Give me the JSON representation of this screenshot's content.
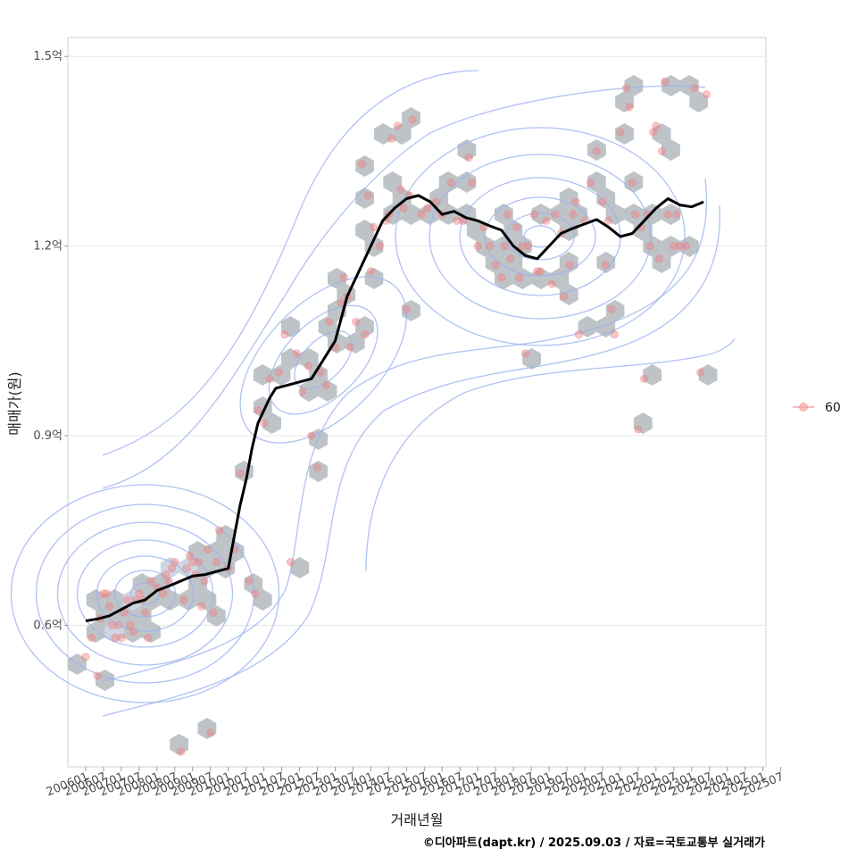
{
  "chart_data": {
    "type": "scatter",
    "xlabel": "거래년월",
    "ylabel": "매매가(원)",
    "caption": "©디아파트(dapt.kr) / 2025.09.03 / 자료=국토교통부 실거래가",
    "x_ticks": [
      "200601",
      "200607",
      "200701",
      "200707",
      "200801",
      "200807",
      "200901",
      "200907",
      "201001",
      "201007",
      "201101",
      "201107",
      "201201",
      "201207",
      "201301",
      "201307",
      "201401",
      "201407",
      "201501",
      "201507",
      "201601",
      "201607",
      "201701",
      "201707",
      "201801",
      "201807",
      "201901",
      "201907",
      "202001",
      "202007",
      "202101",
      "202107",
      "202201",
      "202207",
      "202301",
      "202307",
      "202401",
      "202407",
      "202501",
      "202507"
    ],
    "y_ticks": [
      {
        "label": "0.6억",
        "value": 0.6
      },
      {
        "label": "0.9억",
        "value": 0.9
      },
      {
        "label": "1.2억",
        "value": 1.2
      },
      {
        "label": "1.5억",
        "value": 1.5
      }
    ],
    "x_range": [
      -6,
      229
    ],
    "y_range": [
      0.376,
      1.53
    ],
    "grid": "horizontal",
    "legend": {
      "position": "right",
      "entries": [
        {
          "label": "60",
          "color": "#f4a6a6"
        }
      ]
    },
    "colors": {
      "points": "#f08080",
      "hexbin": "#b4bac0",
      "contour": "#9bb3ef",
      "trend": "#000000",
      "grid": "#e6e6e6"
    },
    "series": [
      {
        "name": "60",
        "kind": "points",
        "points": [
          [
            0,
            0.55
          ],
          [
            2,
            0.58
          ],
          [
            4,
            0.52
          ],
          [
            5,
            0.61
          ],
          [
            6,
            0.65
          ],
          [
            7,
            0.65
          ],
          [
            8,
            0.63
          ],
          [
            9,
            0.6
          ],
          [
            10,
            0.58
          ],
          [
            11,
            0.6
          ],
          [
            12,
            0.58
          ],
          [
            13,
            0.62
          ],
          [
            14,
            0.64
          ],
          [
            15,
            0.6
          ],
          [
            16,
            0.59
          ],
          [
            17,
            0.64
          ],
          [
            18,
            0.65
          ],
          [
            19,
            0.64
          ],
          [
            20,
            0.62
          ],
          [
            21,
            0.58
          ],
          [
            22,
            0.67
          ],
          [
            24,
            0.66
          ],
          [
            26,
            0.65
          ],
          [
            27,
            0.68
          ],
          [
            28,
            0.67
          ],
          [
            29,
            0.69
          ],
          [
            30,
            0.7
          ],
          [
            32,
            0.4
          ],
          [
            33,
            0.64
          ],
          [
            34,
            0.69
          ],
          [
            35,
            0.71
          ],
          [
            36,
            0.7
          ],
          [
            37,
            0.68
          ],
          [
            38,
            0.7
          ],
          [
            39,
            0.63
          ],
          [
            40,
            0.67
          ],
          [
            41,
            0.72
          ],
          [
            42,
            0.43
          ],
          [
            43,
            0.62
          ],
          [
            44,
            0.7
          ],
          [
            45,
            0.75
          ],
          [
            48,
            0.69
          ],
          [
            50,
            0.72
          ],
          [
            52,
            0.84
          ],
          [
            55,
            0.67
          ],
          [
            57,
            0.65
          ],
          [
            58,
            0.94
          ],
          [
            60,
            0.92
          ],
          [
            62,
            0.99
          ],
          [
            65,
            1.0
          ],
          [
            67,
            1.06
          ],
          [
            69,
            0.7
          ],
          [
            71,
            1.03
          ],
          [
            73,
            0.97
          ],
          [
            75,
            1.01
          ],
          [
            76,
            0.9
          ],
          [
            78,
            0.85
          ],
          [
            79,
            1.0
          ],
          [
            81,
            0.98
          ],
          [
            82,
            1.08
          ],
          [
            84,
            1.04
          ],
          [
            86,
            1.11
          ],
          [
            87,
            1.15
          ],
          [
            88,
            1.12
          ],
          [
            89,
            1.04
          ],
          [
            91,
            1.08
          ],
          [
            93,
            1.33
          ],
          [
            94,
            1.06
          ],
          [
            95,
            1.28
          ],
          [
            96,
            1.16
          ],
          [
            97,
            1.23
          ],
          [
            99,
            1.2
          ],
          [
            101,
            1.24
          ],
          [
            102,
            1.25
          ],
          [
            103,
            1.37
          ],
          [
            105,
            1.39
          ],
          [
            106,
            1.29
          ],
          [
            107,
            1.26
          ],
          [
            108,
            1.1
          ],
          [
            109,
            1.28
          ],
          [
            110,
            1.4
          ],
          [
            113,
            1.25
          ],
          [
            115,
            1.26
          ],
          [
            118,
            1.27
          ],
          [
            120,
            1.25
          ],
          [
            123,
            1.3
          ],
          [
            125,
            1.24
          ],
          [
            127,
            1.24
          ],
          [
            129,
            1.34
          ],
          [
            130,
            1.3
          ],
          [
            132,
            1.2
          ],
          [
            134,
            1.23
          ],
          [
            136,
            1.2
          ],
          [
            138,
            1.17
          ],
          [
            140,
            1.15
          ],
          [
            141,
            1.2
          ],
          [
            142,
            1.25
          ],
          [
            143,
            1.18
          ],
          [
            145,
            1.23
          ],
          [
            146,
            1.15
          ],
          [
            147,
            1.2
          ],
          [
            148,
            1.03
          ],
          [
            149,
            1.2
          ],
          [
            151,
            1.25
          ],
          [
            152,
            1.16
          ],
          [
            153,
            1.16
          ],
          [
            155,
            1.24
          ],
          [
            157,
            1.14
          ],
          [
            158,
            1.25
          ],
          [
            160,
            1.22
          ],
          [
            161,
            1.12
          ],
          [
            163,
            1.17
          ],
          [
            164,
            1.25
          ],
          [
            165,
            1.27
          ],
          [
            166,
            1.06
          ],
          [
            168,
            1.24
          ],
          [
            170,
            1.3
          ],
          [
            172,
            1.35
          ],
          [
            174,
            1.27
          ],
          [
            175,
            1.17
          ],
          [
            176,
            1.24
          ],
          [
            177,
            1.1
          ],
          [
            178,
            1.06
          ],
          [
            180,
            1.38
          ],
          [
            182,
            1.45
          ],
          [
            183,
            1.42
          ],
          [
            184,
            1.3
          ],
          [
            185,
            1.25
          ],
          [
            186,
            0.91
          ],
          [
            187,
            1.23
          ],
          [
            188,
            0.99
          ],
          [
            189,
            1.25
          ],
          [
            190,
            1.2
          ],
          [
            191,
            1.38
          ],
          [
            192,
            1.39
          ],
          [
            193,
            1.18
          ],
          [
            194,
            1.35
          ],
          [
            195,
            1.46
          ],
          [
            196,
            1.25
          ],
          [
            198,
            1.2
          ],
          [
            199,
            1.25
          ],
          [
            200,
            1.2
          ],
          [
            202,
            1.2
          ],
          [
            205,
            1.45
          ],
          [
            207,
            1.0
          ],
          [
            209,
            1.44
          ]
        ]
      },
      {
        "name": "",
        "kind": "trend",
        "points": [
          [
            0,
            0.607
          ],
          [
            4,
            0.61
          ],
          [
            8,
            0.615
          ],
          [
            12,
            0.625
          ],
          [
            16,
            0.635
          ],
          [
            20,
            0.64
          ],
          [
            24,
            0.655
          ],
          [
            28,
            0.662
          ],
          [
            32,
            0.67
          ],
          [
            36,
            0.678
          ],
          [
            40,
            0.68
          ],
          [
            44,
            0.685
          ],
          [
            48,
            0.69
          ],
          [
            50,
            0.74
          ],
          [
            52,
            0.79
          ],
          [
            54,
            0.83
          ],
          [
            56,
            0.88
          ],
          [
            58,
            0.92
          ],
          [
            60,
            0.94
          ],
          [
            62,
            0.96
          ],
          [
            64,
            0.975
          ],
          [
            68,
            0.98
          ],
          [
            72,
            0.985
          ],
          [
            76,
            0.99
          ],
          [
            80,
            1.02
          ],
          [
            84,
            1.05
          ],
          [
            88,
            1.12
          ],
          [
            92,
            1.16
          ],
          [
            96,
            1.2
          ],
          [
            100,
            1.24
          ],
          [
            104,
            1.26
          ],
          [
            108,
            1.275
          ],
          [
            112,
            1.28
          ],
          [
            116,
            1.27
          ],
          [
            120,
            1.25
          ],
          [
            124,
            1.255
          ],
          [
            128,
            1.245
          ],
          [
            132,
            1.24
          ],
          [
            136,
            1.232
          ],
          [
            140,
            1.225
          ],
          [
            144,
            1.2
          ],
          [
            148,
            1.185
          ],
          [
            152,
            1.18
          ],
          [
            156,
            1.2
          ],
          [
            160,
            1.22
          ],
          [
            164,
            1.228
          ],
          [
            168,
            1.235
          ],
          [
            172,
            1.242
          ],
          [
            176,
            1.23
          ],
          [
            180,
            1.215
          ],
          [
            184,
            1.22
          ],
          [
            188,
            1.24
          ],
          [
            192,
            1.26
          ],
          [
            196,
            1.275
          ],
          [
            200,
            1.265
          ],
          [
            204,
            1.262
          ],
          [
            208,
            1.27
          ]
        ]
      }
    ]
  }
}
